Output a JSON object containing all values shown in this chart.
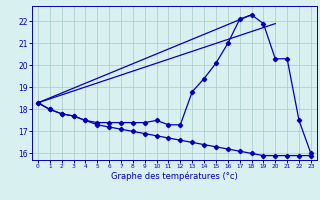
{
  "title": "Graphe des températures (°c)",
  "hours": [
    0,
    1,
    2,
    3,
    4,
    5,
    6,
    7,
    8,
    9,
    10,
    11,
    12,
    13,
    14,
    15,
    16,
    17,
    18,
    19,
    20,
    21,
    22,
    23
  ],
  "curve_measured": [
    18.3,
    18.0,
    17.8,
    17.7,
    17.5,
    17.4,
    17.4,
    17.4,
    17.4,
    17.4,
    17.5,
    17.3,
    17.3,
    18.8,
    19.4,
    20.1,
    21.0,
    22.1,
    22.3,
    21.9,
    20.3,
    20.3,
    17.5,
    16.0
  ],
  "curve_minline": [
    18.3,
    18.0,
    17.8,
    17.7,
    17.5,
    17.3,
    17.2,
    17.1,
    17.0,
    16.9,
    16.8,
    16.7,
    16.6,
    16.5,
    16.4,
    16.3,
    16.2,
    16.1,
    16.0,
    15.9,
    15.9,
    15.9,
    15.9,
    15.9
  ],
  "straight_line1_x": [
    0,
    18
  ],
  "straight_line1_y": [
    18.3,
    22.3
  ],
  "straight_line2_x": [
    0,
    20
  ],
  "straight_line2_y": [
    18.3,
    21.9
  ],
  "line_color": "#0000bb",
  "bg_color": "#d8f0f0",
  "grid_color": "#a8c8c8",
  "ylim": [
    15.7,
    22.7
  ],
  "yticks": [
    16,
    17,
    18,
    19,
    20,
    21,
    22
  ],
  "xlim": [
    -0.5,
    23.5
  ],
  "xticks": [
    0,
    1,
    2,
    3,
    4,
    5,
    6,
    7,
    8,
    9,
    10,
    11,
    12,
    13,
    14,
    15,
    16,
    17,
    18,
    19,
    20,
    21,
    22,
    23
  ]
}
